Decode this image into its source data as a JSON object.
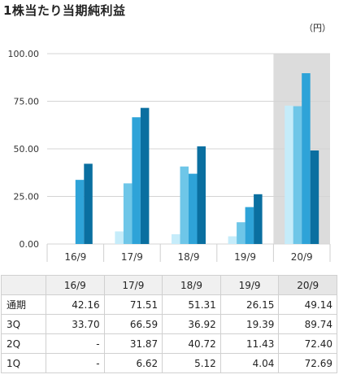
{
  "title": "1株当たり当期純利益",
  "unit": "（円）",
  "chart_data": {
    "type": "bar",
    "categories": [
      "16/9",
      "17/9",
      "18/9",
      "19/9",
      "20/9"
    ],
    "series": [
      {
        "name": "1Q",
        "color": "#c5ecfa",
        "values": [
          null,
          6.62,
          5.12,
          4.04,
          72.69
        ]
      },
      {
        "name": "2Q",
        "color": "#6ec6e8",
        "values": [
          null,
          31.87,
          40.72,
          11.43,
          72.4
        ]
      },
      {
        "name": "3Q",
        "color": "#2ea3d8",
        "values": [
          33.7,
          66.59,
          36.92,
          19.39,
          89.74
        ]
      },
      {
        "name": "通期",
        "color": "#0a6fa0",
        "values": [
          42.16,
          71.51,
          51.31,
          26.15,
          49.14
        ]
      }
    ],
    "ylim": [
      0,
      100
    ],
    "yticks": [
      "0.00",
      "25.00",
      "50.00",
      "75.00",
      "100.00"
    ],
    "highlight_category": "20/9",
    "grid": true
  },
  "table": {
    "headers": [
      "16/9",
      "17/9",
      "18/9",
      "19/9",
      "20/9"
    ],
    "rows": [
      {
        "label": "通期",
        "cells": [
          "42.16",
          "71.51",
          "51.31",
          "26.15",
          "49.14"
        ]
      },
      {
        "label": "3Q",
        "cells": [
          "33.70",
          "66.59",
          "36.92",
          "19.39",
          "89.74"
        ]
      },
      {
        "label": "2Q",
        "cells": [
          "-",
          "31.87",
          "40.72",
          "11.43",
          "72.40"
        ]
      },
      {
        "label": "1Q",
        "cells": [
          "-",
          "6.62",
          "5.12",
          "4.04",
          "72.69"
        ]
      }
    ]
  }
}
